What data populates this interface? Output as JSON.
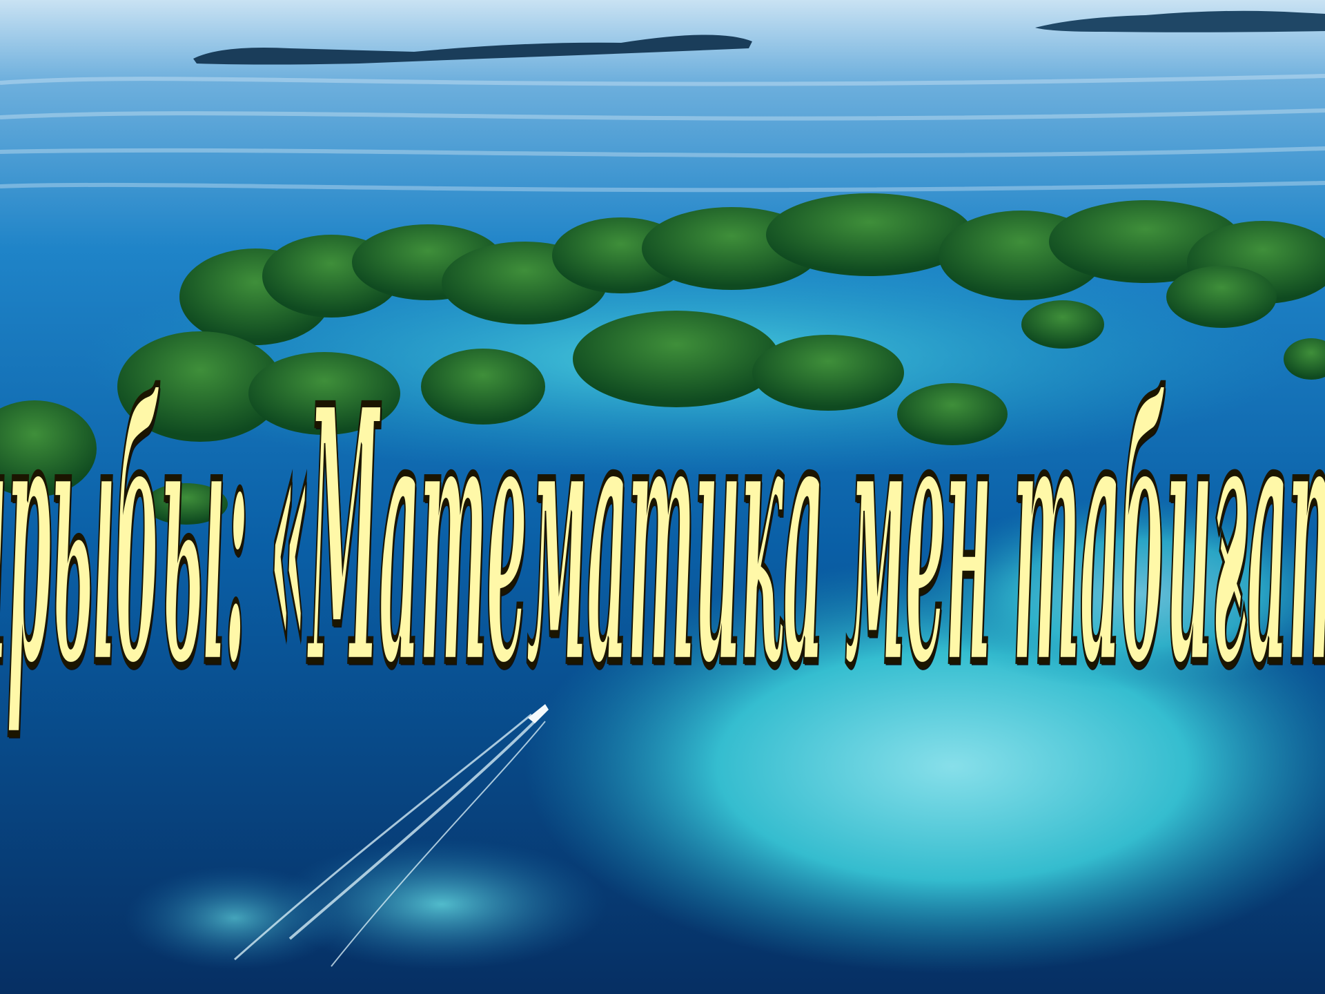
{
  "slide": {
    "title": "Жоба тақырыбы: «Математика мен табиғат үндестігі»"
  },
  "background": {
    "sky_color": "#2f86c4",
    "sea_color": "#0a4c8f",
    "shallow_color": "#35c6d6",
    "island_color": "#1f6b2c",
    "text_color": "#fff8a8"
  }
}
